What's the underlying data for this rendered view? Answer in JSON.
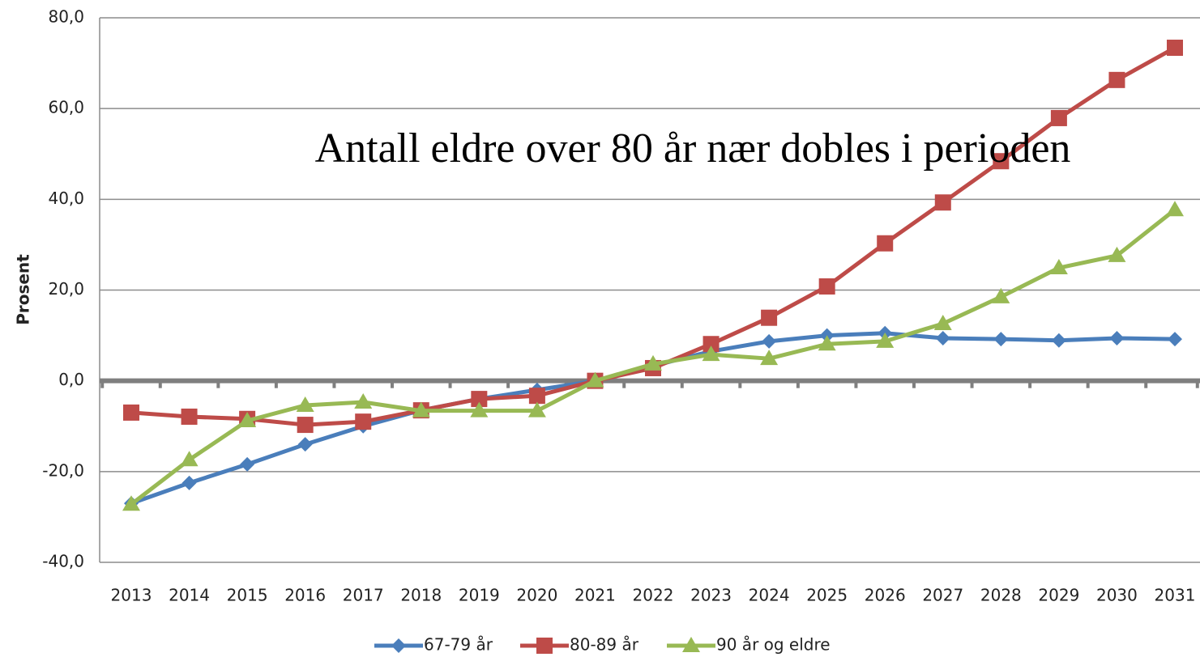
{
  "chart_data": {
    "type": "line",
    "annotation": "Antall eldre over 80 år nær dobles i perioden",
    "ylabel": "Prosent",
    "categories": [
      "2013",
      "2014",
      "2015",
      "2016",
      "2017",
      "2018",
      "2019",
      "2020",
      "2021",
      "2022",
      "2023",
      "2024",
      "2025",
      "2026",
      "2027",
      "2028",
      "2029",
      "2030",
      "2031"
    ],
    "ylim": [
      -40,
      80
    ],
    "yticks": [
      {
        "value": -40,
        "label": "-40,0"
      },
      {
        "value": -20,
        "label": "-20,0"
      },
      {
        "value": 0,
        "label": "0,0"
      },
      {
        "value": 20,
        "label": "20,0"
      },
      {
        "value": 40,
        "label": "40,0"
      },
      {
        "value": 60,
        "label": "60,0"
      },
      {
        "value": 80,
        "label": "80,0"
      }
    ],
    "grid": true,
    "legend": "bottom",
    "series": [
      {
        "name": "67-79 år",
        "color": "#4a7ebb",
        "marker": "diamond",
        "values": [
          -27,
          -22.5,
          -18.4,
          -14,
          -10,
          -6.5,
          -4,
          -2,
          0,
          3.3,
          6.5,
          8.7,
          10,
          10.5,
          9.4,
          9.2,
          8.9,
          9.4,
          9.2
        ]
      },
      {
        "name": "80-89 år",
        "color": "#be4b48",
        "marker": "square",
        "values": [
          -7,
          -7.9,
          -8.4,
          -9.7,
          -9,
          -6.5,
          -4,
          -3.3,
          0,
          2.8,
          8.1,
          13.9,
          20.8,
          30.3,
          39.3,
          48.4,
          57.9,
          66.3,
          73.4
        ]
      },
      {
        "name": "90 år og eldre",
        "color": "#98b954",
        "marker": "triangle",
        "values": [
          -27.2,
          -17.4,
          -8.8,
          -5.4,
          -4.7,
          -6.6,
          -6.6,
          -6.6,
          0,
          3.7,
          5.8,
          4.9,
          8.1,
          8.7,
          12.6,
          18.5,
          24.9,
          27.6,
          37.7
        ]
      }
    ]
  }
}
